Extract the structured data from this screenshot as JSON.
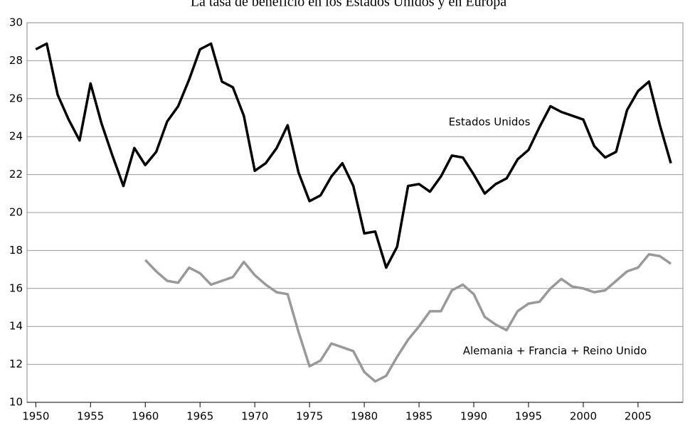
{
  "chart_data": {
    "type": "line",
    "title": "La tasa de beneficio en los Estados Unidos y en Europa",
    "x": [
      1950,
      1951,
      1952,
      1953,
      1954,
      1955,
      1956,
      1957,
      1958,
      1959,
      1960,
      1961,
      1962,
      1963,
      1964,
      1965,
      1966,
      1967,
      1968,
      1969,
      1970,
      1971,
      1972,
      1973,
      1974,
      1975,
      1976,
      1977,
      1978,
      1979,
      1980,
      1981,
      1982,
      1983,
      1984,
      1985,
      1986,
      1987,
      1988,
      1989,
      1990,
      1991,
      1992,
      1993,
      1994,
      1995,
      1996,
      1997,
      1998,
      1999,
      2000,
      2001,
      2002,
      2003,
      2004,
      2005,
      2006,
      2007,
      2008
    ],
    "series": [
      {
        "name": "Estados Unidos",
        "color": "#000000",
        "values": [
          28.6,
          28.9,
          26.2,
          24.9,
          23.8,
          26.8,
          24.7,
          23.0,
          21.4,
          23.4,
          22.5,
          23.2,
          24.8,
          25.6,
          27.0,
          28.6,
          28.9,
          26.9,
          26.6,
          25.1,
          22.2,
          22.6,
          23.4,
          24.6,
          22.1,
          20.6,
          20.9,
          21.9,
          22.6,
          21.4,
          18.9,
          19.0,
          17.1,
          18.2,
          21.4,
          21.5,
          21.1,
          21.9,
          23.0,
          22.9,
          22.0,
          21.0,
          21.5,
          21.8,
          22.8,
          23.3,
          24.5,
          25.6,
          25.3,
          25.1,
          24.9,
          23.5,
          22.9,
          23.2,
          25.4,
          26.4,
          26.9,
          24.6,
          22.6
        ]
      },
      {
        "name": "Alemania + Francia + Reino Unido",
        "color": "#999999",
        "values": [
          null,
          null,
          null,
          null,
          null,
          null,
          null,
          null,
          null,
          null,
          17.5,
          16.9,
          16.4,
          16.3,
          17.1,
          16.8,
          16.2,
          16.4,
          16.6,
          17.4,
          16.7,
          16.2,
          15.8,
          15.7,
          13.7,
          11.9,
          12.2,
          13.1,
          12.9,
          12.7,
          11.6,
          11.1,
          11.4,
          12.4,
          13.3,
          14.0,
          14.8,
          14.8,
          15.9,
          16.2,
          15.7,
          14.5,
          14.1,
          13.8,
          14.8,
          15.2,
          15.3,
          16.0,
          16.5,
          16.1,
          16.0,
          15.8,
          15.9,
          16.4,
          16.9,
          17.1,
          17.8,
          17.7,
          17.3
        ]
      }
    ],
    "xlim": [
      1949.2,
      2009.1
    ],
    "xticks": [
      1950,
      1955,
      1960,
      1965,
      1970,
      1975,
      1980,
      1985,
      1990,
      1995,
      2000,
      2005
    ],
    "ylim": [
      10,
      30
    ],
    "yticks": [
      10,
      12,
      14,
      16,
      18,
      20,
      22,
      24,
      26,
      28,
      30
    ],
    "grid": true
  }
}
